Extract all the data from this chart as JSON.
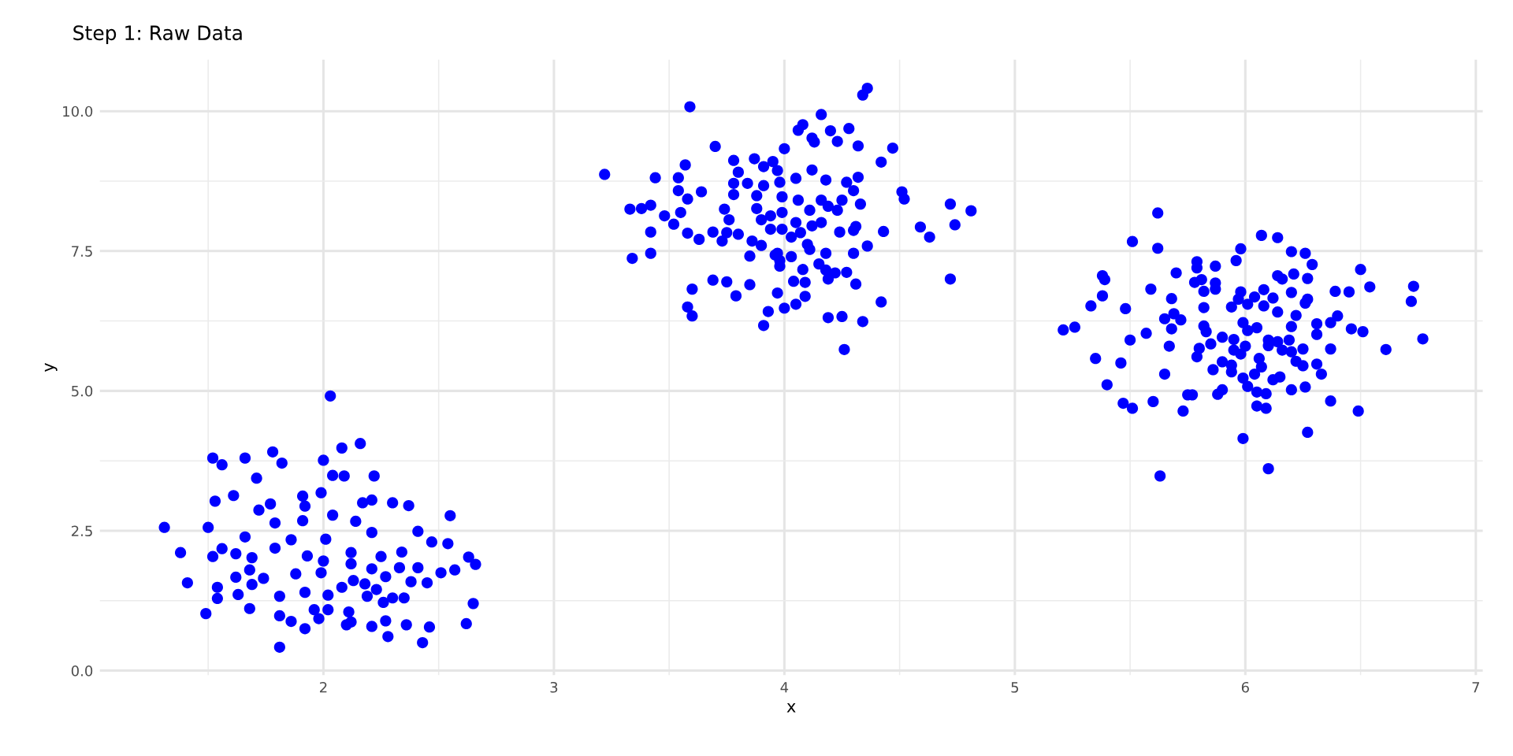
{
  "chart_data": {
    "type": "scatter",
    "title": "Step 1: Raw Data",
    "xlabel": "x",
    "ylabel": "y",
    "xlim": [
      1.03,
      7.03
    ],
    "ylim": [
      -0.08,
      10.92
    ],
    "xticks": [
      2,
      3,
      4,
      5,
      6,
      7
    ],
    "yticks": [
      {
        "value": 0,
        "label": "0.0"
      },
      {
        "value": 2.5,
        "label": "2.5"
      },
      {
        "value": 5,
        "label": "5.0"
      },
      {
        "value": 7.5,
        "label": "7.5"
      },
      {
        "value": 10,
        "label": "10.0"
      }
    ],
    "grid": true,
    "marker": "circle",
    "series": [
      {
        "color": "#0000ff",
        "x": [
          2.03,
          1.52,
          1.56,
          1.66,
          1.78,
          1.82,
          2.0,
          2.08,
          2.16,
          1.71,
          1.53,
          1.61,
          2.04,
          2.09,
          2.22,
          1.91,
          1.99,
          1.92,
          1.31,
          1.5,
          1.72,
          1.77,
          1.79,
          1.91,
          2.04,
          2.14,
          2.17,
          2.21,
          2.3,
          2.37,
          2.55,
          2.21,
          2.41,
          2.47,
          2.54,
          1.38,
          1.52,
          1.56,
          1.62,
          1.66,
          1.69,
          1.79,
          1.86,
          1.93,
          2.01,
          2.0,
          2.12,
          2.25,
          2.34,
          2.63,
          2.66,
          1.41,
          1.54,
          1.62,
          1.68,
          1.74,
          1.88,
          1.99,
          2.12,
          2.21,
          2.27,
          2.33,
          2.41,
          2.51,
          2.57,
          2.38,
          2.45,
          1.49,
          1.54,
          1.63,
          1.69,
          1.68,
          1.81,
          1.81,
          1.86,
          1.92,
          1.96,
          1.98,
          1.92,
          2.02,
          2.02,
          2.08,
          2.13,
          2.18,
          2.19,
          2.23,
          2.11,
          2.1,
          2.12,
          2.21,
          2.27,
          2.28,
          2.26,
          2.3,
          2.35,
          2.36,
          2.46,
          2.43,
          2.62,
          2.65,
          1.81
        ],
        "values": [
          4.91,
          3.8,
          3.68,
          3.8,
          3.91,
          3.71,
          3.76,
          3.98,
          4.06,
          3.44,
          3.03,
          3.13,
          3.49,
          3.48,
          3.48,
          3.12,
          3.18,
          2.94,
          2.56,
          2.56,
          2.87,
          2.98,
          2.64,
          2.68,
          2.78,
          2.67,
          3.0,
          3.05,
          3.0,
          2.95,
          2.77,
          2.47,
          2.49,
          2.3,
          2.27,
          2.11,
          2.04,
          2.18,
          2.09,
          2.39,
          2.02,
          2.19,
          2.34,
          2.05,
          2.35,
          1.96,
          2.11,
          2.04,
          2.12,
          2.03,
          1.9,
          1.57,
          1.49,
          1.67,
          1.8,
          1.65,
          1.73,
          1.75,
          1.91,
          1.82,
          1.68,
          1.84,
          1.84,
          1.75,
          1.8,
          1.59,
          1.57,
          1.02,
          1.29,
          1.36,
          1.54,
          1.11,
          1.33,
          0.98,
          0.88,
          0.75,
          1.09,
          0.93,
          1.4,
          1.35,
          1.09,
          1.49,
          1.61,
          1.55,
          1.33,
          1.45,
          1.05,
          0.82,
          0.87,
          0.79,
          0.89,
          0.61,
          1.22,
          1.3,
          1.3,
          0.82,
          0.78,
          0.5,
          0.84,
          1.2,
          0.42
        ]
      },
      {
        "color": "#0000ff",
        "x": [
          4.36,
          4.34,
          3.59,
          4.16,
          4.08,
          4.06,
          4.2,
          4.28,
          4.12,
          4.13,
          4.23,
          4.32,
          4.47,
          4.42,
          4.0,
          3.7,
          3.78,
          3.87,
          3.91,
          3.95,
          3.97,
          3.57,
          3.44,
          3.22,
          3.54,
          3.8,
          3.78,
          3.84,
          3.91,
          3.98,
          4.05,
          4.12,
          4.18,
          4.27,
          4.32,
          4.3,
          3.54,
          3.64,
          3.58,
          3.78,
          3.88,
          3.99,
          4.06,
          4.16,
          4.25,
          4.33,
          4.51,
          4.52,
          4.72,
          4.81,
          3.33,
          3.38,
          3.42,
          3.48,
          3.55,
          3.52,
          3.58,
          3.42,
          3.63,
          3.69,
          3.73,
          3.75,
          3.8,
          3.74,
          3.76,
          3.88,
          3.94,
          3.99,
          3.9,
          3.94,
          3.99,
          4.05,
          4.07,
          4.03,
          4.12,
          4.16,
          4.11,
          4.19,
          4.23,
          4.24,
          4.3,
          4.31,
          4.43,
          4.59,
          4.63,
          4.74,
          3.86,
          3.9,
          4.1,
          4.11,
          4.18,
          4.3,
          4.36,
          3.34,
          3.42,
          3.85,
          3.96,
          3.97,
          3.98,
          3.98,
          4.03,
          4.08,
          4.15,
          4.18,
          4.22,
          4.27,
          4.19,
          4.31,
          4.72,
          3.69,
          3.75,
          3.85,
          3.6,
          3.79,
          4.04,
          4.09,
          3.97,
          4.09,
          4.05,
          4.0,
          3.93,
          3.58,
          3.6,
          3.91,
          4.19,
          4.25,
          4.34,
          4.42,
          4.26
        ],
        "values": [
          10.41,
          10.29,
          10.08,
          9.94,
          9.76,
          9.66,
          9.65,
          9.69,
          9.52,
          9.45,
          9.46,
          9.38,
          9.34,
          9.09,
          9.33,
          9.37,
          9.12,
          9.15,
          9.01,
          9.1,
          8.94,
          9.04,
          8.81,
          8.87,
          8.81,
          8.91,
          8.71,
          8.71,
          8.67,
          8.73,
          8.8,
          8.95,
          8.77,
          8.73,
          8.82,
          8.58,
          8.58,
          8.56,
          8.43,
          8.51,
          8.49,
          8.47,
          8.41,
          8.41,
          8.41,
          8.34,
          8.56,
          8.43,
          8.34,
          8.22,
          8.25,
          8.26,
          8.32,
          8.13,
          8.19,
          7.98,
          7.82,
          7.84,
          7.71,
          7.84,
          7.68,
          7.83,
          7.8,
          8.25,
          8.06,
          8.26,
          8.13,
          8.19,
          8.06,
          7.89,
          7.89,
          8.01,
          7.83,
          7.75,
          7.95,
          8.01,
          8.23,
          8.3,
          8.23,
          7.84,
          7.87,
          7.94,
          7.85,
          7.93,
          7.75,
          7.97,
          7.68,
          7.6,
          7.62,
          7.53,
          7.46,
          7.46,
          7.59,
          7.37,
          7.46,
          7.41,
          7.43,
          7.46,
          7.33,
          7.23,
          7.4,
          7.17,
          7.27,
          7.16,
          7.11,
          7.12,
          7.0,
          6.91,
          7.0,
          6.98,
          6.95,
          6.9,
          6.82,
          6.7,
          6.96,
          6.94,
          6.75,
          6.69,
          6.55,
          6.48,
          6.42,
          6.5,
          6.34,
          6.17,
          6.31,
          6.33,
          6.24,
          6.59,
          5.74
        ]
      },
      {
        "color": "#0000ff",
        "x": [
          5.62,
          5.51,
          5.62,
          6.07,
          6.14,
          5.98,
          5.96,
          6.2,
          6.26,
          6.29,
          6.5,
          6.73,
          6.72,
          6.54,
          6.77,
          6.61,
          5.38,
          5.39,
          5.38,
          5.33,
          5.48,
          5.21,
          5.26,
          5.59,
          5.7,
          5.79,
          5.79,
          5.87,
          5.78,
          5.81,
          5.87,
          5.82,
          5.87,
          5.68,
          5.82,
          5.69,
          5.65,
          5.72,
          5.68,
          5.82,
          5.83,
          5.57,
          5.5,
          5.67,
          5.35,
          5.46,
          5.4,
          5.65,
          5.47,
          5.51,
          5.6,
          5.73,
          5.75,
          5.77,
          5.63,
          5.99,
          6.1,
          6.27,
          6.37,
          6.49,
          5.88,
          5.9,
          5.99,
          6.01,
          6.05,
          6.05,
          6.09,
          6.09,
          6.2,
          6.26,
          6.04,
          6.07,
          6.06,
          6.12,
          6.15,
          5.86,
          5.9,
          5.94,
          5.94,
          5.79,
          5.8,
          5.85,
          5.9,
          5.95,
          5.95,
          5.98,
          6.0,
          5.99,
          6.01,
          6.05,
          5.94,
          5.98,
          5.97,
          6.01,
          6.04,
          6.08,
          6.08,
          6.12,
          6.14,
          6.14,
          6.16,
          6.21,
          6.27,
          6.2,
          6.27,
          6.26,
          6.22,
          6.2,
          6.1,
          6.1,
          6.14,
          6.19,
          6.16,
          6.2,
          6.25,
          6.22,
          6.25,
          6.31,
          6.33,
          6.31,
          6.31,
          6.37,
          6.4,
          6.39,
          6.45,
          6.46,
          6.51,
          6.37
        ],
        "values": [
          8.18,
          7.67,
          7.55,
          7.78,
          7.74,
          7.54,
          7.33,
          7.49,
          7.46,
          7.26,
          7.17,
          6.87,
          6.6,
          6.86,
          5.93,
          5.74,
          7.06,
          6.99,
          6.7,
          6.52,
          6.47,
          6.09,
          6.14,
          6.82,
          7.11,
          7.31,
          7.2,
          7.23,
          6.94,
          6.99,
          6.93,
          6.78,
          6.82,
          6.65,
          6.49,
          6.38,
          6.29,
          6.27,
          6.11,
          6.16,
          6.06,
          6.03,
          5.91,
          5.8,
          5.58,
          5.5,
          5.11,
          5.3,
          4.78,
          4.69,
          4.81,
          4.64,
          4.93,
          4.93,
          3.48,
          4.15,
          3.61,
          4.26,
          4.82,
          4.64,
          4.94,
          5.02,
          5.23,
          5.08,
          4.98,
          4.73,
          4.69,
          4.95,
          5.02,
          5.07,
          5.3,
          5.43,
          5.58,
          5.2,
          5.25,
          5.38,
          5.52,
          5.46,
          5.34,
          5.61,
          5.76,
          5.84,
          5.96,
          5.92,
          5.73,
          5.66,
          5.8,
          6.22,
          6.08,
          6.13,
          6.5,
          6.77,
          6.64,
          6.55,
          6.68,
          6.81,
          6.52,
          6.66,
          6.41,
          7.06,
          7.0,
          7.09,
          7.01,
          6.76,
          6.64,
          6.57,
          6.35,
          6.15,
          5.91,
          5.81,
          5.88,
          5.91,
          5.73,
          5.7,
          5.75,
          5.53,
          5.45,
          5.48,
          5.3,
          6.2,
          6.01,
          6.22,
          6.34,
          6.78,
          6.77,
          6.11,
          6.06,
          5.75
        ]
      }
    ]
  }
}
